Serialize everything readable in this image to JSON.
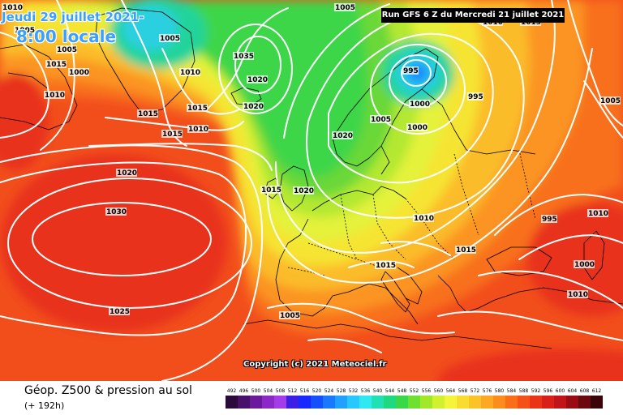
{
  "header": {
    "date": "Jeudi 29 juillet 2021-",
    "time": "8:00 locale",
    "run_info": "Run GFS 6 Z du Mercredi 21 juillet 2021"
  },
  "copyright": "Copyright (c) 2021 Meteociel.fr",
  "footer": {
    "title": "Géop. Z500 & pression au sol",
    "forecast_range": "(+ 192h)"
  },
  "legend": {
    "levels": [
      "492",
      "496",
      "500",
      "504",
      "508",
      "512",
      "516",
      "520",
      "524",
      "528",
      "532",
      "536",
      "540",
      "544",
      "548",
      "552",
      "556",
      "560",
      "564",
      "568",
      "572",
      "576",
      "580",
      "584",
      "588",
      "592",
      "596",
      "600",
      "604",
      "608",
      "612"
    ],
    "colors": [
      "#2a0a3a",
      "#48106a",
      "#6a1a9a",
      "#8a28c8",
      "#a43ce8",
      "#3c1ee6",
      "#1a28ff",
      "#1450ff",
      "#1a78ff",
      "#20a0ff",
      "#28c8ff",
      "#30e8f0",
      "#20e0b4",
      "#20d880",
      "#38d84a",
      "#6ee030",
      "#a0e828",
      "#d0f030",
      "#f4f43a",
      "#f8dc30",
      "#fac428",
      "#fca822",
      "#fc8c1c",
      "#fa6e18",
      "#f45018",
      "#ea3418",
      "#d82018",
      "#c01418",
      "#9a0c14",
      "#6c0810",
      "#3a0408"
    ]
  },
  "map": {
    "colors": {
      "land_border": "#000000",
      "isobar": "#ffffff",
      "deep_red": "#e8321c",
      "red": "#f24e1c",
      "orange_red": "#f8701e",
      "orange": "#fb9424",
      "yellow_orange": "#fbbc2c",
      "yellow": "#f6e432",
      "light_yellow": "#e4f23a",
      "yellow_green": "#b4e830",
      "green": "#6ad838",
      "bright_green": "#3ed648",
      "aqua": "#22d49a",
      "cyan": "#2ad0e0",
      "blue": "#1c8cff"
    },
    "pressure_labels": [
      "1010",
      "1015",
      "1010",
      "1015",
      "1005",
      "1010",
      "1015",
      "1010",
      "1015",
      "1020",
      "1035",
      "1020",
      "1020",
      "1015",
      "1020",
      "1005",
      "995",
      "1000",
      "995",
      "1005",
      "1000",
      "1020",
      "1030",
      "1025",
      "1015",
      "1010",
      "1015",
      "1005",
      "1005",
      "995",
      "1000",
      "1010",
      "1010",
      "1015",
      "1010",
      "1005",
      "1005",
      "1000"
    ],
    "high_lows": [
      "1030",
      "1035",
      "995"
    ]
  }
}
